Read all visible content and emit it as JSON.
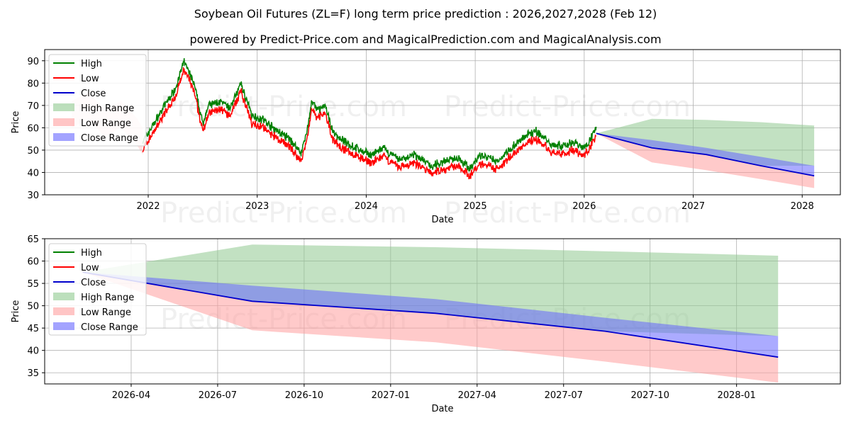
{
  "title": "Soybean Oil Futures (ZL=F) long term price prediction : 2026,2027,2028 (Feb 12)",
  "subtitle": "powered by Predict-Price.com and MagicalPrediction.com and MagicalAnalysis.com",
  "watermark": "Predict-Price.com",
  "colors": {
    "high": "#008000",
    "low": "#ff0000",
    "close": "#0000cc",
    "high_range": "#8fc98f",
    "low_range": "#ff9e9e",
    "close_range": "#6666ff"
  },
  "chart_data": [
    {
      "type": "line",
      "name": "history-and-forecast",
      "xlabel": "Date",
      "ylabel": "Price",
      "xlim": [
        2021.05,
        2028.35
      ],
      "ylim": [
        30,
        95
      ],
      "xticks": [
        2022,
        2023,
        2024,
        2025,
        2026,
        2027,
        2028
      ],
      "xtick_labels": [
        "2022",
        "2023",
        "2024",
        "2025",
        "2026",
        "2027",
        "2028"
      ],
      "yticks": [
        30,
        40,
        50,
        60,
        70,
        80,
        90
      ],
      "legend": [
        "High",
        "Low",
        "Close",
        "High Range",
        "Low Range",
        "Close Range"
      ],
      "legend_position": "upper-left",
      "grid": true,
      "history_anchors": {
        "x": [
          2021.95,
          2022.05,
          2022.15,
          2022.25,
          2022.33,
          2022.42,
          2022.5,
          2022.55,
          2022.65,
          2022.75,
          2022.85,
          2022.95,
          2023.05,
          2023.15,
          2023.3,
          2023.4,
          2023.45,
          2023.5,
          2023.55,
          2023.62,
          2023.7,
          2023.8,
          2023.95,
          2024.05,
          2024.15,
          2024.3,
          2024.45,
          2024.6,
          2024.7,
          2024.85,
          2024.95,
          2025.05,
          2025.2,
          2025.3,
          2025.45,
          2025.55,
          2025.7,
          2025.8,
          2025.9,
          2026.0,
          2026.05,
          2026.11
        ],
        "y": [
          52,
          60,
          68,
          76,
          88,
          78,
          60,
          68,
          70,
          67,
          78,
          64,
          62,
          58,
          53,
          47,
          55,
          70,
          66,
          68,
          56,
          52,
          48,
          46,
          49,
          44,
          46,
          41,
          43,
          45,
          40,
          46,
          43,
          48,
          54,
          57,
          51,
          50,
          52,
          49,
          53,
          58
        ]
      },
      "forecast": {
        "x": [
          2026.11,
          2026.62,
          2027.12,
          2027.62,
          2028.11
        ],
        "close": [
          57.5,
          51,
          48,
          43,
          38.5
        ],
        "close_upper": [
          57.5,
          54.5,
          51,
          47,
          43
        ],
        "close_lower": [
          57.5,
          51,
          48,
          43,
          38.5
        ],
        "high_upper": [
          57.5,
          64,
          63.5,
          62.5,
          61
        ],
        "high_lower": [
          57.5,
          51,
          48,
          43,
          43
        ],
        "low_upper": [
          57.5,
          51,
          48,
          43,
          38.5
        ],
        "low_lower": [
          57.5,
          44.5,
          41,
          37,
          33
        ]
      }
    },
    {
      "type": "line",
      "name": "forecast-zoom",
      "xlabel": "Date",
      "ylabel": "Price",
      "xlim": [
        2026.0,
        2028.3
      ],
      "ylim": [
        32.5,
        65
      ],
      "xticks": [
        2026.25,
        2026.5,
        2026.75,
        2027.0,
        2027.25,
        2027.5,
        2027.75,
        2028.0
      ],
      "xtick_labels": [
        "2026-04",
        "2026-07",
        "2026-10",
        "2027-01",
        "2027-04",
        "2027-07",
        "2027-10",
        "2028-01"
      ],
      "yticks": [
        35,
        40,
        45,
        50,
        55,
        60,
        65
      ],
      "legend": [
        "High",
        "Low",
        "Close",
        "High Range",
        "Low Range",
        "Close Range"
      ],
      "legend_position": "upper-left",
      "grid": true,
      "forecast": {
        "x": [
          2026.11,
          2026.6,
          2027.13,
          2027.62,
          2028.12
        ],
        "close": [
          57.5,
          51,
          48.3,
          44.3,
          38.5
        ],
        "close_upper": [
          57.5,
          54.5,
          51.5,
          47.3,
          43.2
        ],
        "close_lower": [
          57.5,
          51,
          48.3,
          44.3,
          38.5
        ],
        "high_upper": [
          57.5,
          63.7,
          63.1,
          62.2,
          61.2
        ],
        "high_lower": [
          57.5,
          51,
          48.3,
          44.3,
          43.2
        ],
        "low_upper": [
          57.5,
          51,
          48.3,
          44.3,
          38.5
        ],
        "low_lower": [
          57.5,
          44.5,
          41.8,
          37.5,
          32.8
        ]
      }
    }
  ]
}
